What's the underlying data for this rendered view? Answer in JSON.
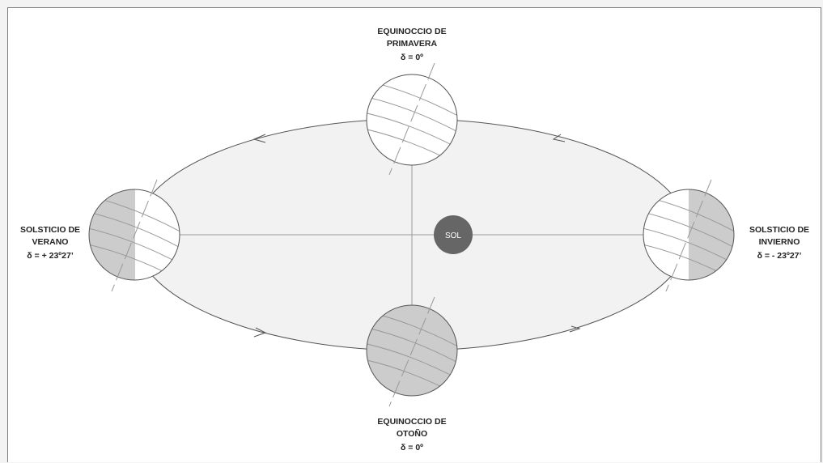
{
  "seasons": {
    "spring": {
      "line1": "EQUINOCCIO DE",
      "line2": "PRIMAVERA",
      "delta": "δ = 0º"
    },
    "autumn": {
      "line1": "EQUINOCCIO DE",
      "line2": "OTOÑO",
      "delta": "δ = 0º"
    },
    "summer": {
      "line1": "SOLSTICIO DE",
      "line2": "VERANO",
      "delta": "δ = + 23º27’"
    },
    "winter": {
      "line1": "SOLSTICIO DE",
      "line2": "INVIERNO",
      "delta": "δ = - 23º27’"
    }
  },
  "sun": {
    "label": "SOL",
    "color": "#666666"
  },
  "colors": {
    "orbit_fill": "#f2f2f2",
    "night_side": "#cccccc",
    "day_side": "#ffffff",
    "lines": "#999999"
  }
}
